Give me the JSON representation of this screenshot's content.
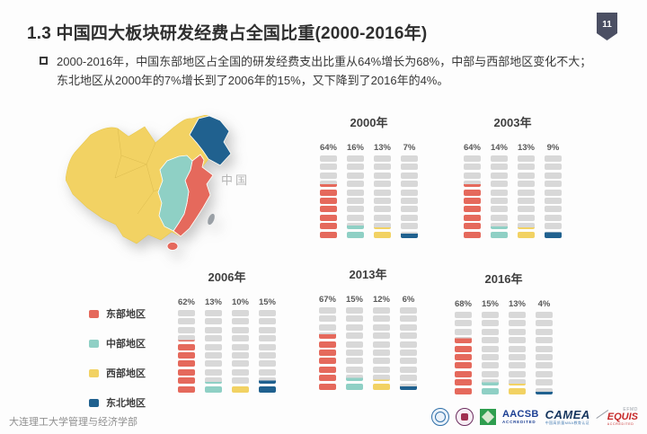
{
  "page": {
    "title": "1.3  中国四大板块研发经费占全国比重(2000-2016年)",
    "slide_number": "11",
    "bullet": {
      "line1": "2000-2016年，中国东部地区占全国的研发经费支出比重从64%增长为68%，中部与西部地区变化不大；",
      "line2": "东北地区从2000年的7%增长到了2006年的15%，又下降到了2016年的4%。"
    }
  },
  "map": {
    "label": "中国",
    "region_colors": {
      "west": "#f2d263",
      "central": "#8fd0c5",
      "east": "#e5695c",
      "northeast": "#20618f",
      "taiwan": "#9aa0a6"
    }
  },
  "legend": {
    "items": [
      {
        "label": "东部地区",
        "color": "#e5695c"
      },
      {
        "label": "中部地区",
        "color": "#8fd0c5"
      },
      {
        "label": "西部地区",
        "color": "#f2d263"
      },
      {
        "label": "东北地区",
        "color": "#20618f"
      }
    ]
  },
  "chart_data": {
    "type": "bar",
    "subtype": "waffle-columns-10-blocks",
    "unit": "%",
    "blocks_per_column": 10,
    "block_value": 10,
    "categories": [
      "东部地区",
      "中部地区",
      "西部地区",
      "东北地区"
    ],
    "colors": [
      "#e5695c",
      "#8fd0c5",
      "#f2d263",
      "#20618f"
    ],
    "empty_color": "#d8d8d8",
    "groups": [
      {
        "label": "2000年",
        "values": [
          64,
          16,
          13,
          7
        ]
      },
      {
        "label": "2003年",
        "values": [
          64,
          14,
          13,
          9
        ]
      },
      {
        "label": "2006年",
        "values": [
          62,
          13,
          10,
          15
        ]
      },
      {
        "label": "2013年",
        "values": [
          67,
          15,
          12,
          6
        ]
      },
      {
        "label": "2016年",
        "values": [
          68,
          15,
          13,
          4
        ]
      }
    ],
    "grid": false,
    "legend_position": "middle-left"
  },
  "footer": {
    "affiliation": "大连理工大学管理与经济学部",
    "accreditations": {
      "aacsb": {
        "name": "AACSB",
        "sub": "ACCREDITED"
      },
      "camea": {
        "name": "CAMEA",
        "sub": "中国高质量MBA教育认证"
      },
      "equis": {
        "name": "EQUIS",
        "tag": "EFMD",
        "sub": "ACCREDITED"
      }
    }
  }
}
